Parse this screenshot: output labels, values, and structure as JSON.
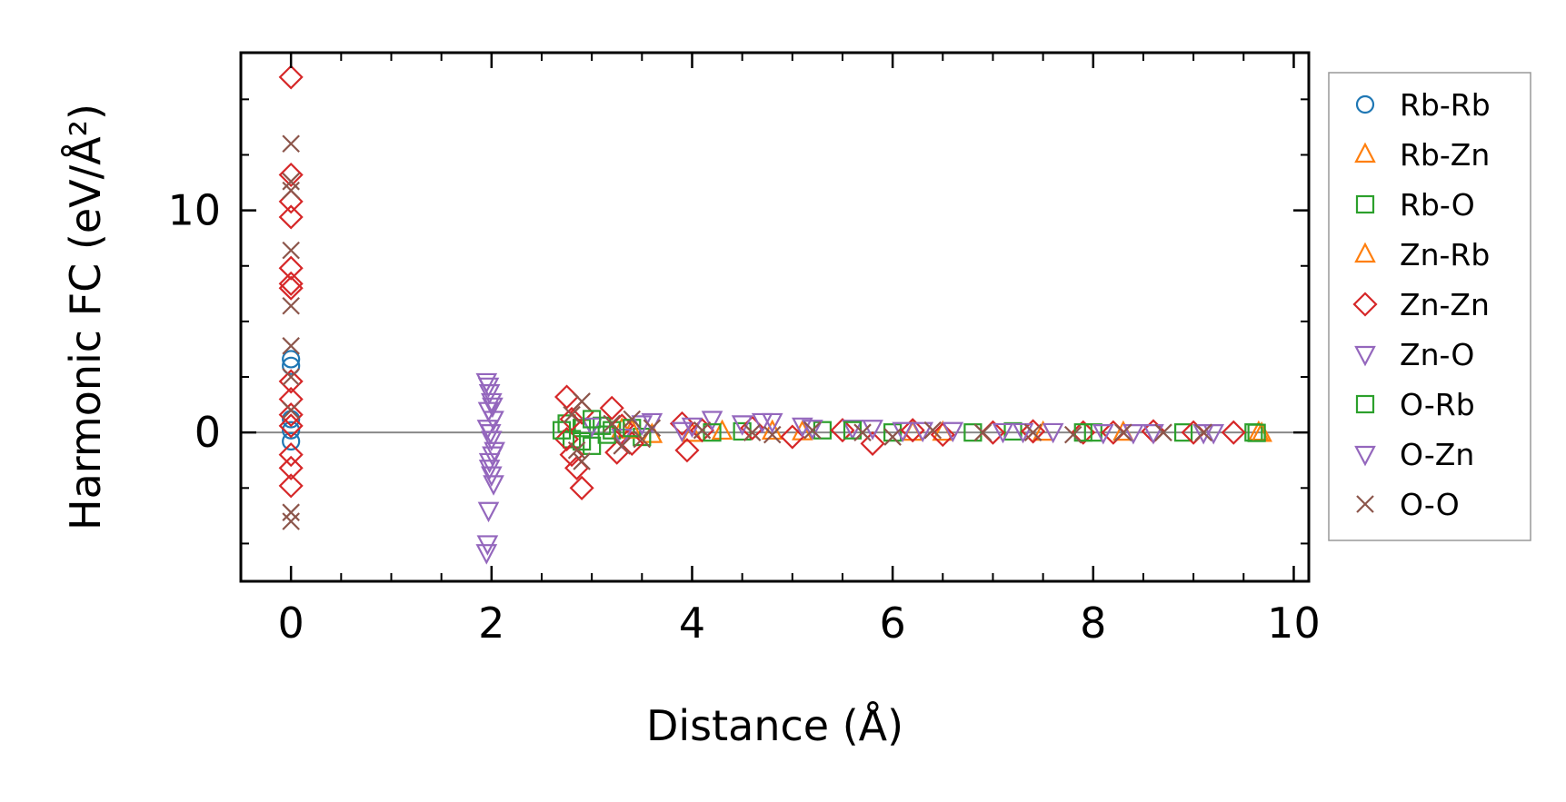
{
  "chart_data": {
    "type": "scatter",
    "xlabel": "Distance (Å)",
    "ylabel": "Harmonic FC (eV/Å²)",
    "xlim": [
      -0.5,
      10.15
    ],
    "ylim": [
      -6.7,
      17.1
    ],
    "x_ticks": [
      0,
      2,
      4,
      6,
      8,
      10
    ],
    "y_ticks": [
      0,
      10
    ],
    "x_tick_labels": [
      "0",
      "2",
      "4",
      "6",
      "8",
      "10"
    ],
    "y_tick_labels": [
      "0",
      "10"
    ],
    "zero_line": true,
    "grid": false,
    "legend_position": "right",
    "series": [
      {
        "name": "Rb-Rb",
        "marker": "circle",
        "color": "#1f77b4",
        "points": [
          [
            0,
            3.3
          ],
          [
            0,
            3.0
          ],
          [
            0,
            0.6
          ],
          [
            0,
            -0.4
          ],
          [
            0,
            0.1
          ]
        ]
      },
      {
        "name": "Rb-Zn",
        "marker": "triangle-up",
        "color": "#ff7f0e",
        "points": [
          [
            3.3,
            0.15
          ],
          [
            3.6,
            -0.1
          ],
          [
            4.3,
            0.05
          ],
          [
            5.1,
            0.02
          ],
          [
            6.2,
            0.0
          ],
          [
            7.5,
            0.0
          ],
          [
            9.65,
            0.0
          ]
        ]
      },
      {
        "name": "Rb-O",
        "marker": "square",
        "color": "#2ca02c",
        "points": [
          [
            2.75,
            0.4
          ],
          [
            2.8,
            -0.3
          ],
          [
            2.9,
            0.2
          ],
          [
            3.0,
            -0.6
          ],
          [
            3.1,
            0.3
          ],
          [
            3.2,
            0.1
          ],
          [
            3.5,
            -0.2
          ],
          [
            4.5,
            0.05
          ],
          [
            5.3,
            0.1
          ],
          [
            6.0,
            0.0
          ],
          [
            7.2,
            0.05
          ],
          [
            8.0,
            0.0
          ],
          [
            8.9,
            0.0
          ],
          [
            9.6,
            0.0
          ]
        ]
      },
      {
        "name": "Zn-Rb",
        "marker": "triangle-up",
        "color": "#ff7f0e",
        "points": [
          [
            3.4,
            0.1
          ],
          [
            4.0,
            -0.05
          ],
          [
            4.8,
            0.05
          ],
          [
            6.5,
            0.0
          ],
          [
            8.3,
            0.0
          ],
          [
            9.68,
            -0.05
          ]
        ]
      },
      {
        "name": "Zn-Zn",
        "marker": "diamond",
        "color": "#d62728",
        "points": [
          [
            0,
            16.0
          ],
          [
            0,
            11.6
          ],
          [
            0,
            10.4
          ],
          [
            0,
            9.7
          ],
          [
            0,
            7.4
          ],
          [
            0,
            6.7
          ],
          [
            0,
            6.5
          ],
          [
            0,
            2.3
          ],
          [
            0,
            1.5
          ],
          [
            0,
            0.8
          ],
          [
            0,
            0.3
          ],
          [
            0,
            -1.0
          ],
          [
            0,
            -1.6
          ],
          [
            0,
            -2.4
          ],
          [
            2.75,
            1.6
          ],
          [
            2.8,
            0.6
          ],
          [
            2.75,
            -0.3
          ],
          [
            2.8,
            -1.0
          ],
          [
            2.85,
            -1.6
          ],
          [
            2.9,
            -2.5
          ],
          [
            2.9,
            0.9
          ],
          [
            3.2,
            1.1
          ],
          [
            3.25,
            -0.9
          ],
          [
            3.3,
            0.3
          ],
          [
            3.4,
            -0.5
          ],
          [
            3.9,
            0.4
          ],
          [
            3.95,
            -0.8
          ],
          [
            4.1,
            0.1
          ],
          [
            4.6,
            0.2
          ],
          [
            5.0,
            -0.2
          ],
          [
            5.5,
            0.1
          ],
          [
            5.8,
            -0.5
          ],
          [
            6.2,
            0.1
          ],
          [
            6.5,
            -0.1
          ],
          [
            7.0,
            0.0
          ],
          [
            7.4,
            0.05
          ],
          [
            7.9,
            0.0
          ],
          [
            8.2,
            0.0
          ],
          [
            8.6,
            0.05
          ],
          [
            9.0,
            0.0
          ],
          [
            9.4,
            0.0
          ]
        ]
      },
      {
        "name": "Zn-O",
        "marker": "triangle-down",
        "color": "#9467bd",
        "points": [
          [
            1.95,
            2.3
          ],
          [
            1.98,
            1.8
          ],
          [
            2.0,
            1.4
          ],
          [
            1.97,
            1.0
          ],
          [
            2.02,
            0.6
          ],
          [
            1.96,
            0.2
          ],
          [
            2.0,
            -0.3
          ],
          [
            2.03,
            -0.8
          ],
          [
            1.98,
            -1.3
          ],
          [
            2.0,
            -1.9
          ],
          [
            2.02,
            -2.3
          ],
          [
            1.97,
            -3.5
          ],
          [
            1.96,
            -5.0
          ],
          [
            1.95,
            -5.4
          ],
          [
            3.0,
            0.3
          ],
          [
            3.3,
            -0.2
          ],
          [
            3.6,
            0.5
          ],
          [
            3.9,
            0.1
          ],
          [
            4.2,
            0.6
          ],
          [
            4.5,
            0.4
          ],
          [
            4.8,
            0.5
          ],
          [
            5.1,
            0.3
          ],
          [
            5.6,
            0.2
          ],
          [
            6.1,
            0.1
          ],
          [
            6.6,
            0.1
          ],
          [
            7.1,
            0.05
          ],
          [
            7.6,
            0.05
          ],
          [
            8.1,
            0.0
          ],
          [
            8.6,
            0.0
          ],
          [
            9.1,
            0.0
          ]
        ]
      },
      {
        "name": "O-Rb",
        "marker": "square",
        "color": "#2ca02c",
        "points": [
          [
            2.7,
            0.1
          ],
          [
            2.9,
            -0.4
          ],
          [
            3.0,
            0.6
          ],
          [
            3.15,
            -0.1
          ],
          [
            3.4,
            0.2
          ],
          [
            4.2,
            0.0
          ],
          [
            5.6,
            0.1
          ],
          [
            6.8,
            0.0
          ],
          [
            7.9,
            0.0
          ],
          [
            9.63,
            -0.02
          ]
        ]
      },
      {
        "name": "O-Zn",
        "marker": "triangle-down",
        "color": "#9467bd",
        "points": [
          [
            1.97,
            2.1
          ],
          [
            2.01,
            1.2
          ],
          [
            1.99,
            0.0
          ],
          [
            2.01,
            -1.0
          ],
          [
            1.98,
            -1.6
          ],
          [
            3.5,
            0.4
          ],
          [
            4.0,
            0.3
          ],
          [
            4.7,
            0.5
          ],
          [
            5.2,
            0.2
          ],
          [
            5.8,
            0.2
          ],
          [
            6.3,
            0.1
          ],
          [
            7.3,
            0.05
          ],
          [
            8.4,
            0.0
          ],
          [
            9.2,
            0.0
          ]
        ]
      },
      {
        "name": "O-O",
        "marker": "x",
        "color": "#8c564b",
        "points": [
          [
            0,
            13.0
          ],
          [
            0,
            11.3
          ],
          [
            0,
            10.9
          ],
          [
            0,
            8.2
          ],
          [
            0,
            5.7
          ],
          [
            0,
            3.9
          ],
          [
            0,
            2.5
          ],
          [
            0,
            1.0
          ],
          [
            0,
            -3.6
          ],
          [
            0,
            -4.0
          ],
          [
            2.8,
            0.8
          ],
          [
            2.85,
            -0.8
          ],
          [
            2.9,
            1.4
          ],
          [
            2.9,
            -1.3
          ],
          [
            3.2,
            0.4
          ],
          [
            3.3,
            -0.6
          ],
          [
            3.4,
            0.6
          ],
          [
            3.5,
            -0.3
          ],
          [
            3.6,
            0.2
          ],
          [
            4.1,
            0.1
          ],
          [
            4.6,
            0.0
          ],
          [
            4.8,
            -0.1
          ],
          [
            5.2,
            0.1
          ],
          [
            5.7,
            0.0
          ],
          [
            6.0,
            -0.2
          ],
          [
            6.4,
            0.1
          ],
          [
            6.9,
            0.0
          ],
          [
            7.4,
            0.0
          ],
          [
            7.8,
            -0.1
          ],
          [
            8.3,
            0.0
          ],
          [
            8.7,
            0.0
          ],
          [
            9.1,
            0.0
          ]
        ]
      }
    ]
  }
}
